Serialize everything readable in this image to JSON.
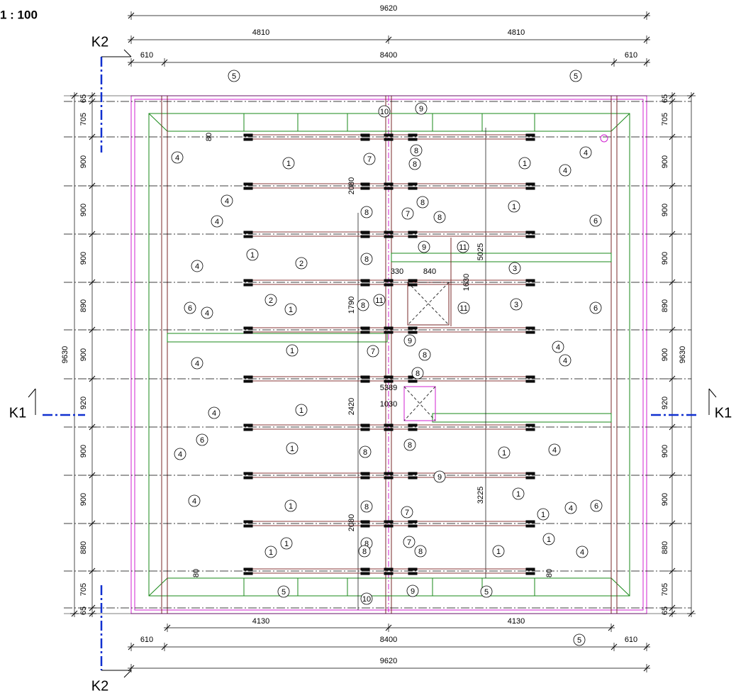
{
  "scale": "1 : 100",
  "section_marks": [
    "K2",
    "K1",
    "K1",
    "K2"
  ],
  "dimensions": {
    "top": [
      "9620",
      "4810",
      "4810",
      "610",
      "8400",
      "610"
    ],
    "bottom": [
      "4130",
      "4130",
      "610",
      "8400",
      "610",
      "9620"
    ],
    "left": [
      "65",
      "705",
      "900",
      "900",
      "900",
      "890",
      "900",
      "920",
      "900",
      "900",
      "880",
      "705",
      "65",
      "9630"
    ],
    "right": [
      "65",
      "705",
      "900",
      "900",
      "900",
      "890",
      "900",
      "920",
      "900",
      "900",
      "880",
      "705",
      "65",
      "9630"
    ],
    "inner": [
      "80",
      "2080",
      "330",
      "840",
      "1630",
      "5025",
      "1790",
      "5389",
      "1030",
      "2420",
      "3225",
      "2080",
      "80",
      "80"
    ]
  },
  "callouts": [
    "5",
    "5",
    "10",
    "9",
    "4",
    "1",
    "7",
    "8",
    "8",
    "4",
    "1",
    "4",
    "4",
    "8",
    "1",
    "4",
    "8",
    "7",
    "8",
    "6",
    "1",
    "8",
    "9",
    "11",
    "4",
    "2",
    "3",
    "2",
    "3",
    "1",
    "6",
    "4",
    "8",
    "11",
    "11",
    "6",
    "9",
    "1",
    "7",
    "4",
    "8",
    "4",
    "4",
    "8",
    "1",
    "4",
    "6",
    "1",
    "8",
    "8",
    "4",
    "4",
    "9",
    "1",
    "1",
    "4",
    "1",
    "8",
    "7",
    "1",
    "4",
    "6",
    "1",
    "8",
    "7",
    "8",
    "1",
    "1",
    "8",
    "1",
    "4",
    "9",
    "5",
    "5",
    "10",
    "5"
  ]
}
